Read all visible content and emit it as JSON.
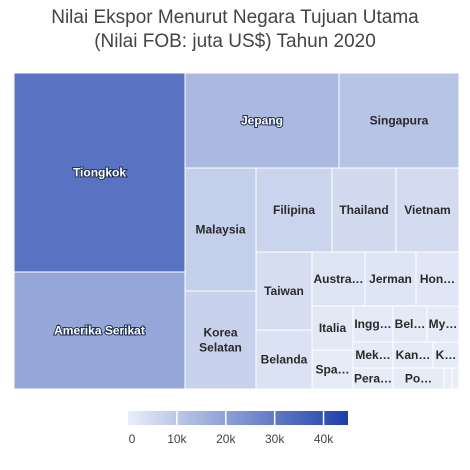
{
  "chart_data": {
    "type": "treemap",
    "title_lines": [
      "Nilai Ekspor Menurut Negara Tujuan Utama",
      "(Nilai FOB: juta US$) Tahun 2020"
    ],
    "value_unit": "juta US$",
    "color_scale": {
      "min": 0,
      "max": 45000,
      "low_color": "#e9eef8",
      "high_color": "#1d3fab",
      "ticks": [
        "0",
        "10k",
        "20k",
        "30k",
        "40k"
      ],
      "tick_values": [
        0,
        10000,
        20000,
        30000,
        40000
      ]
    },
    "items": [
      {
        "label": "Tiongkok",
        "value": 31800
      },
      {
        "label": "Amerika Serikat",
        "value": 18600
      },
      {
        "label": "Jepang",
        "value": 13700
      },
      {
        "label": "Singapura",
        "value": 10700
      },
      {
        "label": "Malaysia",
        "value": 8100
      },
      {
        "label": "Korea Selatan",
        "value": 7200
      },
      {
        "label": "Filipina",
        "value": 6600
      },
      {
        "label": "Thailand",
        "value": 5100
      },
      {
        "label": "Vietnam",
        "value": 5000
      },
      {
        "label": "Taiwan",
        "value": 4300
      },
      {
        "label": "Belanda",
        "value": 3200
      },
      {
        "label": "Austra…",
        "value": 2600
      },
      {
        "label": "Jerman",
        "value": 2400
      },
      {
        "label": "Hon…",
        "value": 2000
      },
      {
        "label": "Italia",
        "value": 1600
      },
      {
        "label": "Ingg…",
        "value": 1400
      },
      {
        "label": "Bel…",
        "value": 1200
      },
      {
        "label": "My…",
        "value": 1100
      },
      {
        "label": "Mek…",
        "value": 1000
      },
      {
        "label": "Kan…",
        "value": 900
      },
      {
        "label": "K…",
        "value": 850
      },
      {
        "label": "Spa…",
        "value": 800
      },
      {
        "label": "Pera…",
        "value": 750
      },
      {
        "label": "Po…",
        "value": 700
      },
      {
        "label": "",
        "value": 300
      },
      {
        "label": "",
        "value": 250
      }
    ]
  }
}
